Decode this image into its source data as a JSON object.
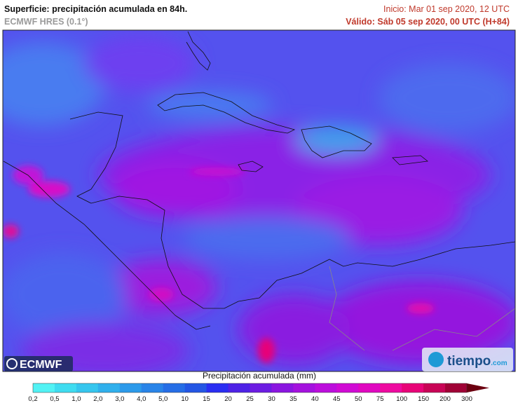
{
  "header": {
    "title": "Superficie: precipitación acumulada en 84h.",
    "model": "ECMWF HRES (0.1°)",
    "init": "Inicio: Mar 01 sep 2020, 12 UTC",
    "valid": "Válido: Sáb 05 sep 2020, 00 UTC (H+84)"
  },
  "logos": {
    "left": "ECMWF",
    "right": "tiempo",
    "right_suffix": ".com"
  },
  "legend": {
    "title": "Precipitación acumulada (mm)",
    "labels": [
      "0,2",
      "0,5",
      "1,0",
      "2,0",
      "3,0",
      "4,0",
      "5,0",
      "10",
      "15",
      "20",
      "25",
      "30",
      "35",
      "40",
      "45",
      "50",
      "75",
      "100",
      "150",
      "200",
      "300"
    ],
    "colors": [
      "#52f2f4",
      "#3fdcf0",
      "#36c6ee",
      "#30b0ec",
      "#2c9aea",
      "#2984e8",
      "#266ee6",
      "#2456e4",
      "#2a2ef2",
      "#4e22e6",
      "#6c1ce2",
      "#8a16e0",
      "#a412de",
      "#bc0edc",
      "#d00ad4",
      "#e008c0",
      "#ee0aa0",
      "#e80478",
      "#c80456",
      "#a00236",
      "#6c0010"
    ]
  }
}
